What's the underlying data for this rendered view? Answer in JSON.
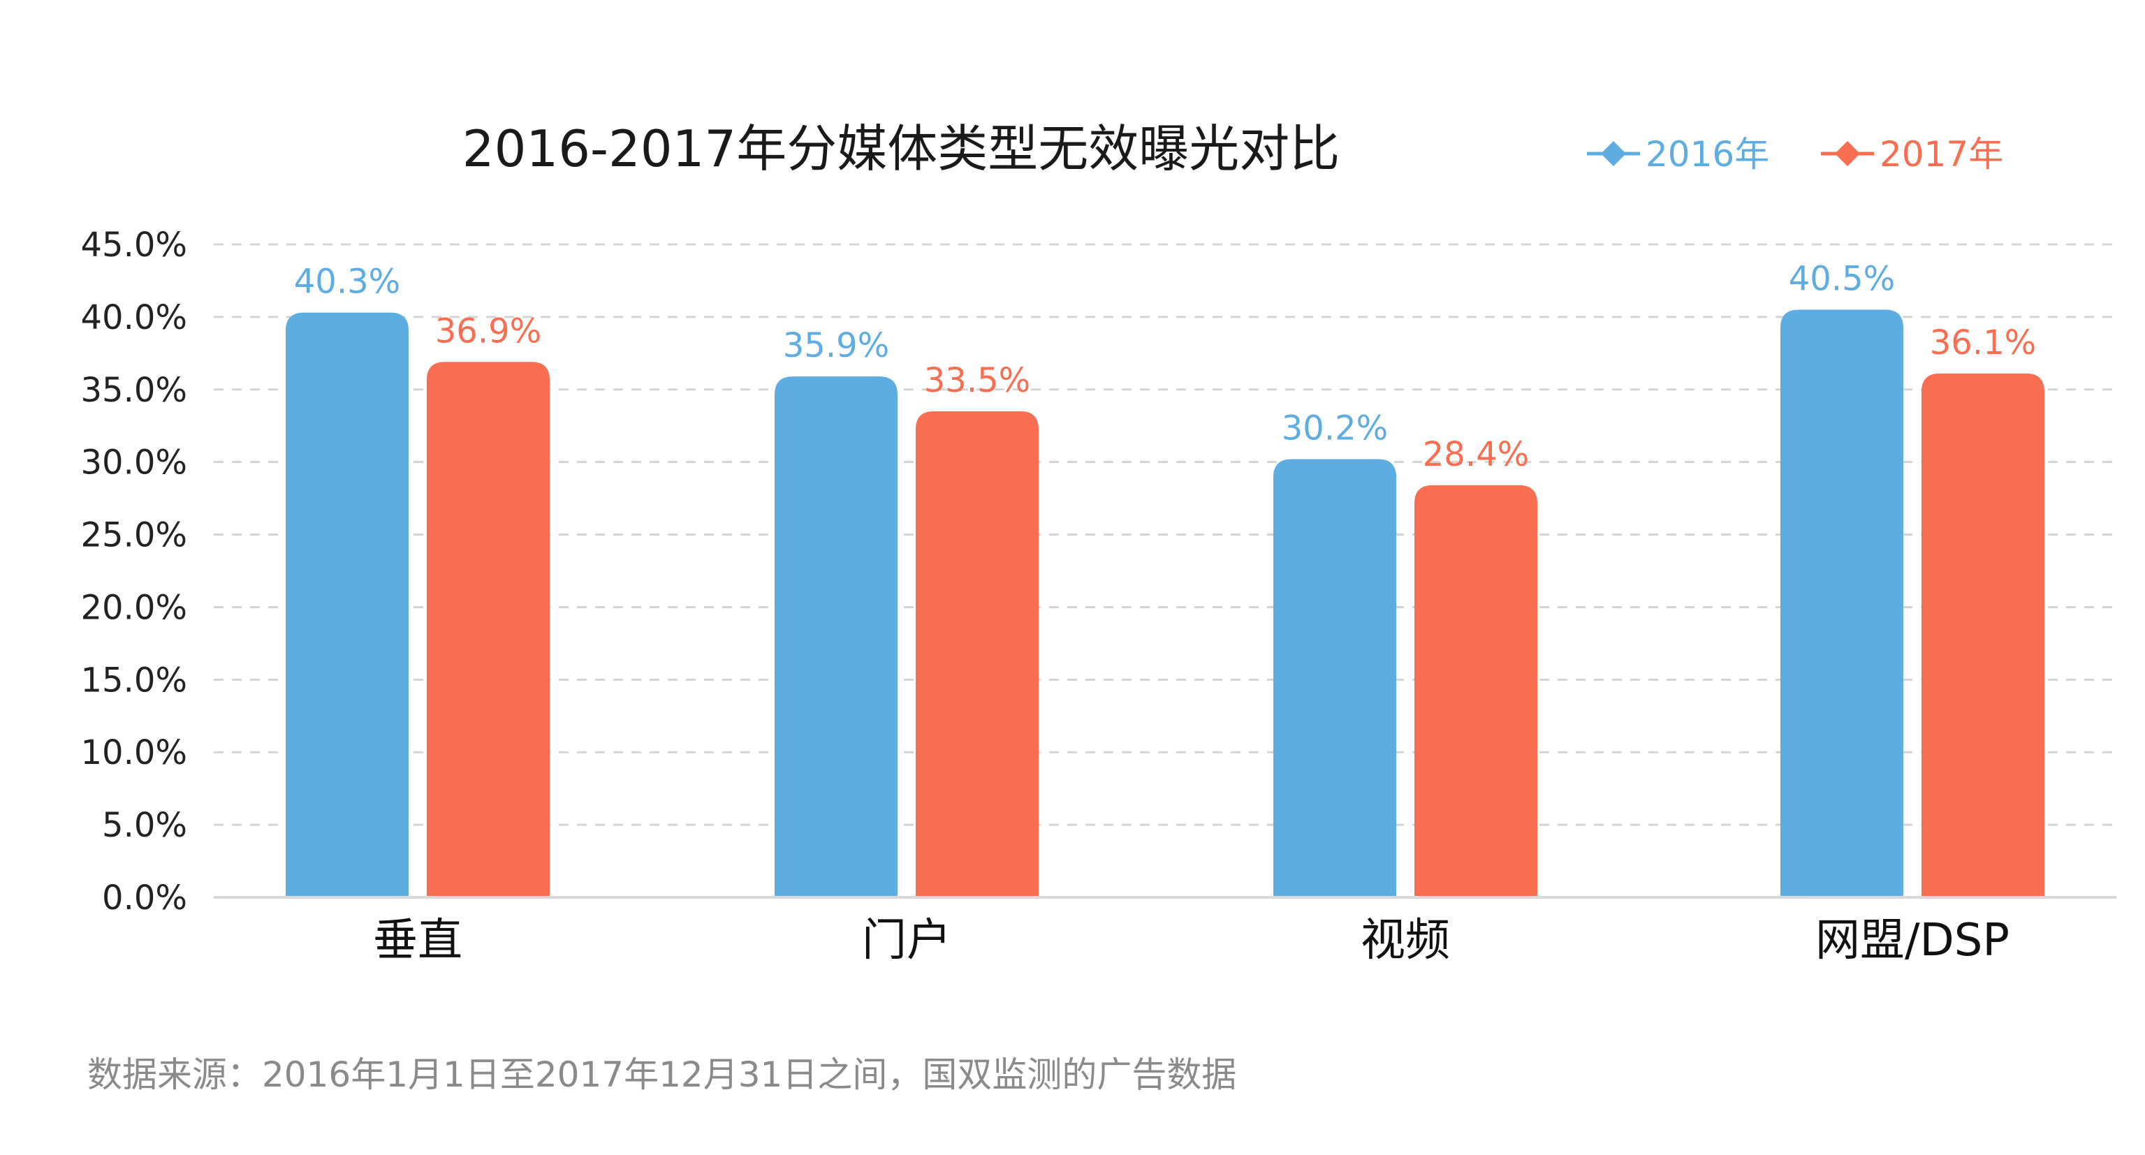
{
  "chart_data": {
    "type": "bar",
    "title": "2016-2017年分媒体类型无效曝光对比",
    "categories": [
      "垂直",
      "门户",
      "视频",
      "网盟/DSP"
    ],
    "series": [
      {
        "name": "2016年",
        "color": "#5DADE2",
        "values": [
          40.3,
          35.9,
          30.2,
          40.5
        ],
        "labels": [
          "40.3%",
          "35.9%",
          "30.2%",
          "40.5%"
        ]
      },
      {
        "name": "2017年",
        "color": "#F96D50",
        "values": [
          36.9,
          33.5,
          28.4,
          36.1
        ],
        "labels": [
          "36.9%",
          "33.5%",
          "28.4%",
          "36.1%"
        ]
      }
    ],
    "ylim": [
      0,
      45
    ],
    "yticks": [
      "0.0%",
      "5.0%",
      "10.0%",
      "15.0%",
      "20.0%",
      "25.0%",
      "30.0%",
      "35.0%",
      "40.0%",
      "45.0%"
    ],
    "grid": true,
    "legend_position": "top-right",
    "xlabel": "",
    "ylabel": ""
  },
  "source_note": "数据来源：2016年1月1日至2017年12月31日之间，国双监测的广告数据"
}
